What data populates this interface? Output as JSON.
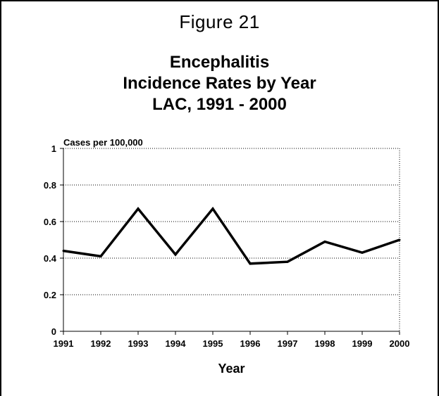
{
  "figure_label": "Figure 21",
  "chart_data": {
    "type": "line",
    "title_lines": [
      "Encephalitis",
      "Incidence Rates by Year",
      "LAC, 1991 - 2000"
    ],
    "ylabel": "Cases per 100,000",
    "xlabel": "Year",
    "ylim": [
      0,
      1
    ],
    "yticks": [
      "0",
      "0.2",
      "0.4",
      "0.6",
      "0.8",
      "1"
    ],
    "x": [
      "1991",
      "1992",
      "1993",
      "1994",
      "1995",
      "1996",
      "1997",
      "1998",
      "1999",
      "2000"
    ],
    "values": [
      0.44,
      0.41,
      0.67,
      0.42,
      0.67,
      0.37,
      0.38,
      0.49,
      0.43,
      0.5
    ],
    "grid": true,
    "line_color": "#000000"
  }
}
